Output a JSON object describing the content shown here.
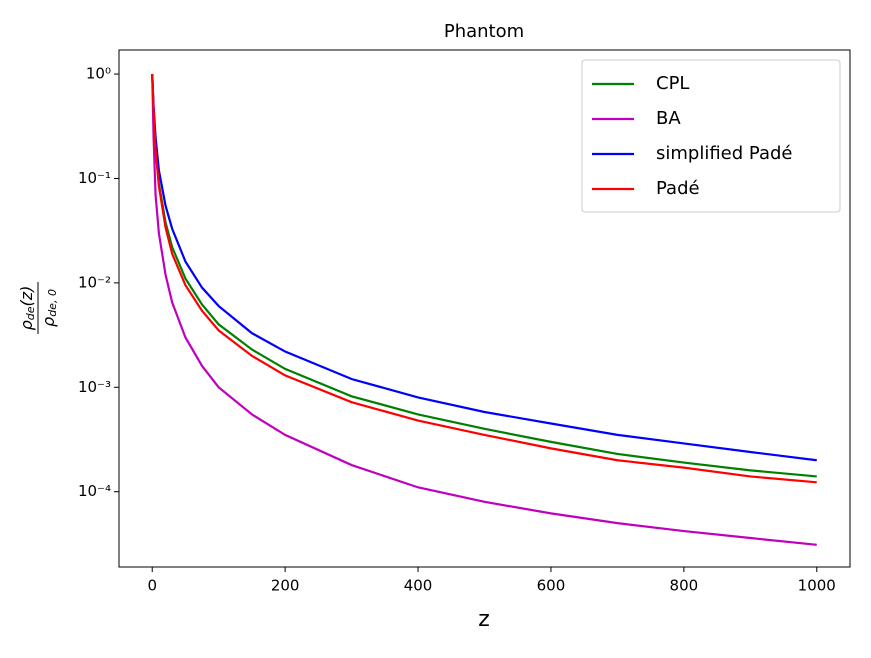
{
  "chart_data": {
    "type": "line",
    "title": "Phantom",
    "xlabel": "z",
    "ylabel": {
      "numerator": {
        "base": "ρ",
        "sub": "de",
        "rest": "(z)"
      },
      "denominator": {
        "base": "ρ",
        "sub": "de, 0"
      }
    },
    "x": [
      0,
      2,
      5,
      10,
      20,
      30,
      50,
      75,
      100,
      150,
      200,
      300,
      400,
      500,
      600,
      700,
      800,
      900,
      1000
    ],
    "series": [
      {
        "name": "CPL",
        "color": "#008000",
        "values": [
          1,
          0.45,
          0.2,
          0.09,
          0.038,
          0.022,
          0.011,
          0.0062,
          0.004,
          0.0023,
          0.0015,
          0.00082,
          0.00055,
          0.0004,
          0.0003,
          0.00023,
          0.00019,
          0.00016,
          0.00014
        ]
      },
      {
        "name": "BA",
        "color": "#bf00bf",
        "values": [
          1,
          0.25,
          0.07,
          0.03,
          0.012,
          0.0065,
          0.003,
          0.0016,
          0.001,
          0.00055,
          0.00035,
          0.00018,
          0.00011,
          8e-05,
          6.2e-05,
          5e-05,
          4.2e-05,
          3.6e-05,
          3.1e-05
        ]
      },
      {
        "name": "simplified Padé",
        "color": "#0000ff",
        "values": [
          1,
          0.5,
          0.25,
          0.12,
          0.055,
          0.033,
          0.016,
          0.009,
          0.006,
          0.0033,
          0.0022,
          0.0012,
          0.0008,
          0.00058,
          0.00045,
          0.00035,
          0.00029,
          0.00024,
          0.0002
        ]
      },
      {
        "name": "Padé",
        "color": "#ff0000",
        "values": [
          1,
          0.45,
          0.19,
          0.085,
          0.034,
          0.019,
          0.0095,
          0.0054,
          0.0035,
          0.002,
          0.0013,
          0.00072,
          0.00048,
          0.00035,
          0.00026,
          0.0002,
          0.00017,
          0.00014,
          0.000123
        ]
      }
    ],
    "xlim": [
      -50,
      1050
    ],
    "xticks": [
      0,
      200,
      400,
      600,
      800,
      1000
    ],
    "ylim": [
      1.9e-05,
      1.7
    ],
    "ylog": true,
    "yticks": [
      {
        "value": 1,
        "label": "10⁰"
      },
      {
        "value": 0.1,
        "label": "10⁻¹"
      },
      {
        "value": 0.01,
        "label": "10⁻²"
      },
      {
        "value": 0.001,
        "label": "10⁻³"
      },
      {
        "value": 0.0001,
        "label": "10⁻⁴"
      }
    ],
    "legend": "upper right",
    "grid": false
  }
}
